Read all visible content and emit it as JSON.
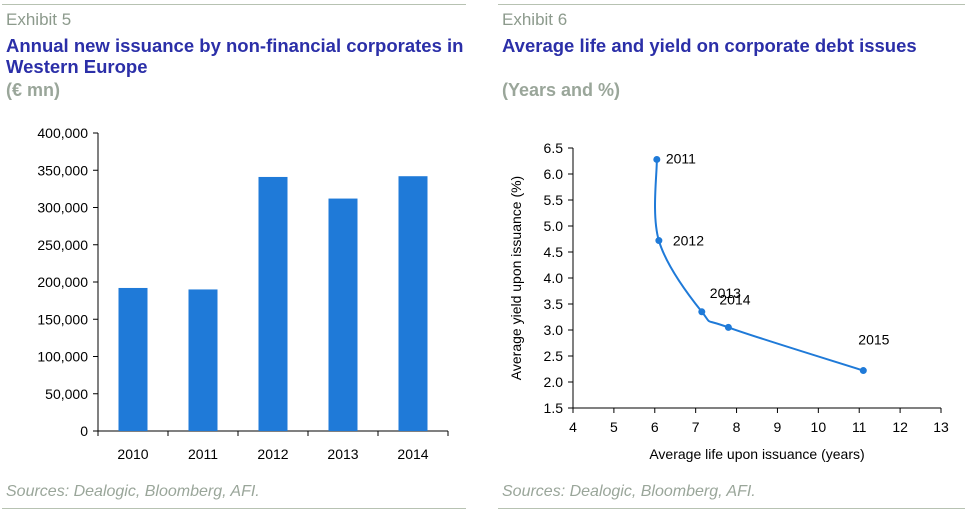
{
  "left": {
    "exhibit": "Exhibit 5",
    "title": "Annual new issuance by non-financial corporates in Western Europe",
    "unit": "(€ mn)",
    "source": "Sources: Dealogic, Bloomberg, AFI."
  },
  "right": {
    "exhibit": "Exhibit 6",
    "title": "Average life and yield on corporate debt issues",
    "unit": "(Years and %)",
    "source": "Sources: Dealogic, Bloomberg, AFI."
  },
  "colors": {
    "series": "#1f7ad8",
    "title": "#2b2fa8",
    "muted": "#9aa69a",
    "rule": "#b7c2b2"
  },
  "chart_data": [
    {
      "type": "bar",
      "categories": [
        "2010",
        "2011",
        "2012",
        "2013",
        "2014"
      ],
      "values": [
        192000,
        190000,
        341000,
        312000,
        342000
      ],
      "ylim": [
        0,
        400000
      ],
      "yticks": [
        0,
        50000,
        100000,
        150000,
        200000,
        250000,
        300000,
        350000,
        400000
      ],
      "ytick_labels": [
        "0",
        "50,000",
        "100,000",
        "150,000",
        "200,000",
        "250,000",
        "300,000",
        "350,000",
        "400,000"
      ],
      "xlabel": "",
      "ylabel": "",
      "grid": false,
      "legend": "none"
    },
    {
      "type": "line",
      "points": [
        {
          "label": "2011",
          "x": 6.05,
          "y": 6.28
        },
        {
          "label": "2012",
          "x": 6.1,
          "y": 4.72
        },
        {
          "label": "2013",
          "x": 7.15,
          "y": 3.35
        },
        {
          "label": "2014",
          "x": 7.8,
          "y": 3.05
        },
        {
          "label": "2015",
          "x": 11.1,
          "y": 2.22
        }
      ],
      "xlim": [
        4,
        13
      ],
      "ylim": [
        1.5,
        6.5
      ],
      "xticks": [
        "4",
        "5",
        "6",
        "7",
        "8",
        "9",
        "10",
        "11",
        "12",
        "13"
      ],
      "yticks": [
        "1.5",
        "2.0",
        "2.5",
        "3.0",
        "3.5",
        "4.0",
        "4.5",
        "5.0",
        "5.5",
        "6.0",
        "6.5"
      ],
      "xlabel": "Average life upon issuance (years)",
      "ylabel": "Average yield upon issuance (%)",
      "grid": false,
      "legend": "none"
    }
  ]
}
